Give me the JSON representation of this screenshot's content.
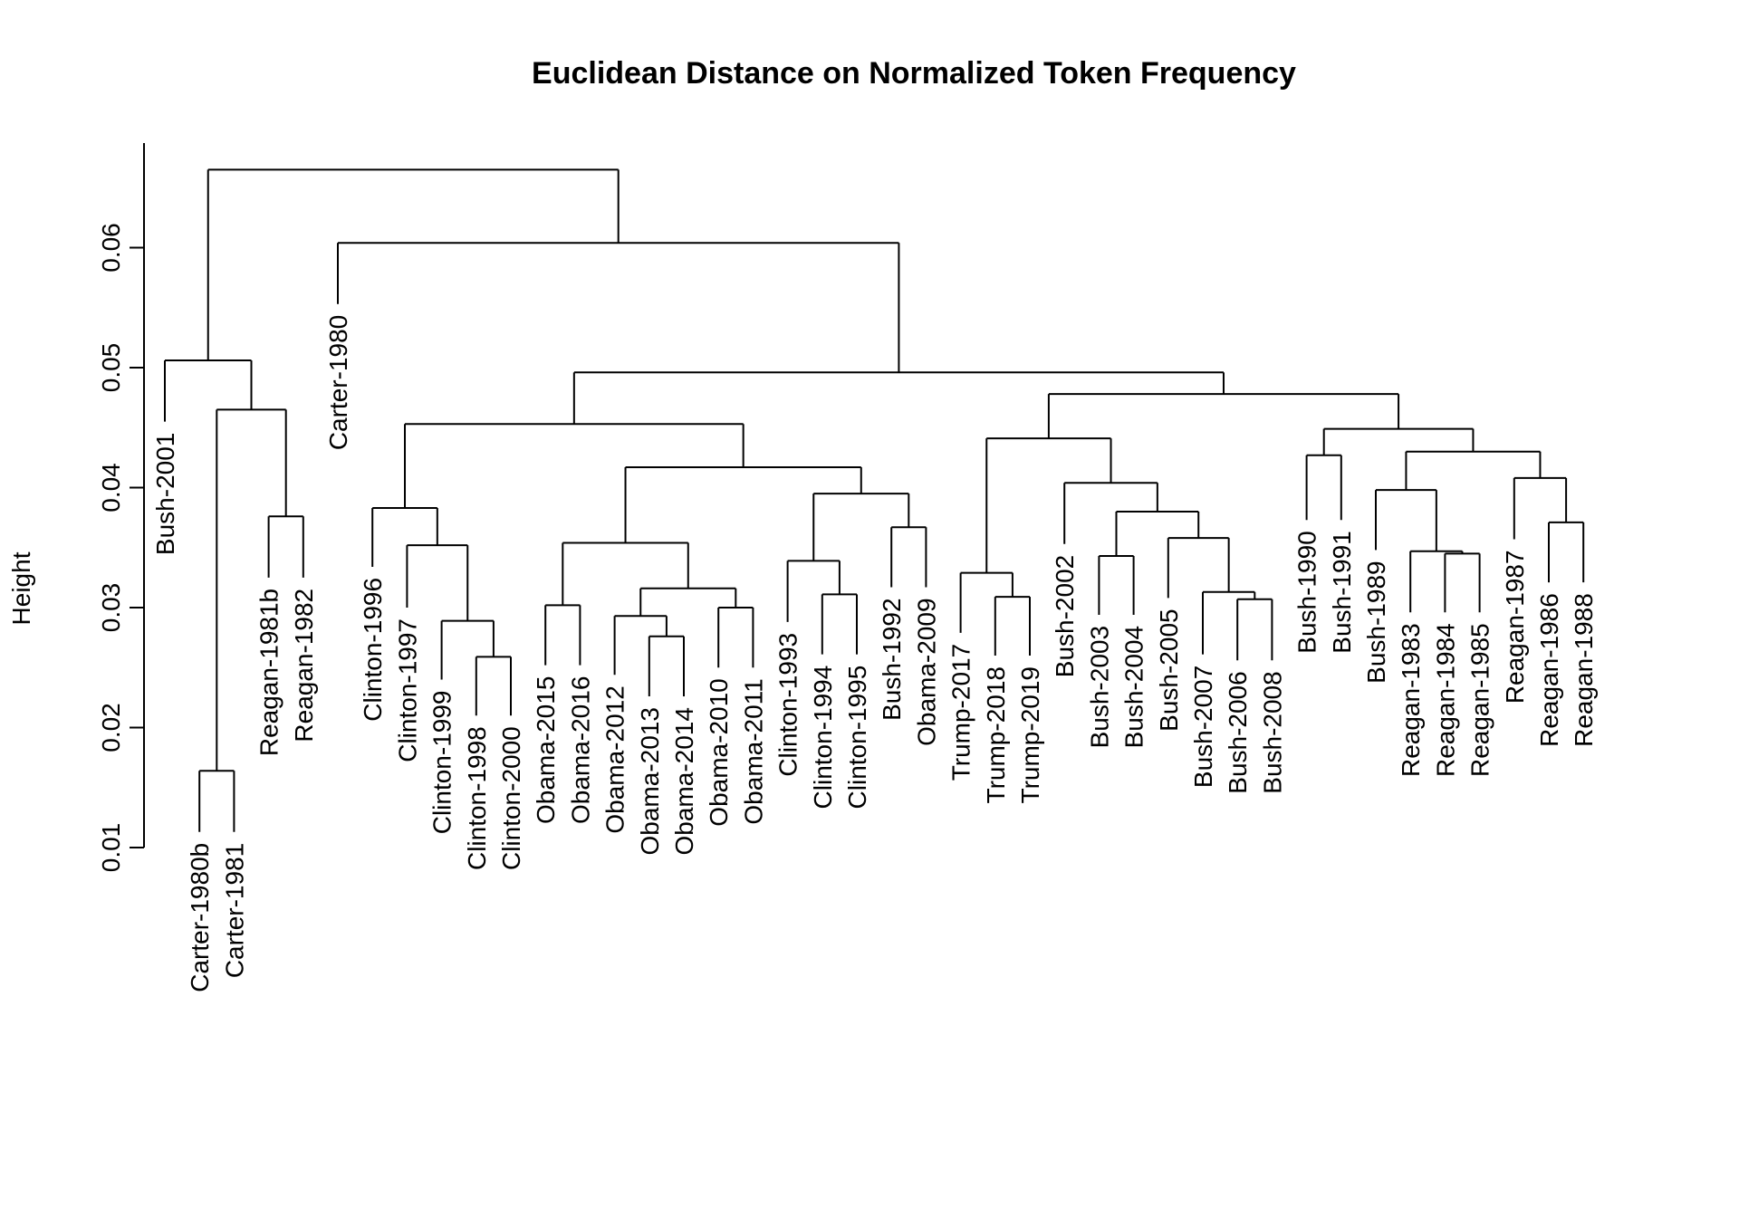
{
  "chart_data": {
    "type": "dendrogram",
    "title": "Euclidean Distance on Normalized Token Frequency",
    "ylabel": "Height",
    "xlabel": "",
    "ylim": [
      0.01,
      0.0665
    ],
    "yticks": [
      "0.01",
      "0.02",
      "0.03",
      "0.04",
      "0.05",
      "0.06"
    ],
    "grid": false,
    "leaves": [
      {
        "label": "Bush-2001",
        "height": 0.0455
      },
      {
        "label": "Carter-1980b",
        "height": 0.0113
      },
      {
        "label": "Carter-1981",
        "height": 0.0113
      },
      {
        "label": "Reagan-1981b",
        "height": 0.0325
      },
      {
        "label": "Reagan-1982",
        "height": 0.0325
      },
      {
        "label": "Carter-1980",
        "height": 0.0553
      },
      {
        "label": "Clinton-1996",
        "height": 0.0334
      },
      {
        "label": "Clinton-1997",
        "height": 0.03
      },
      {
        "label": "Clinton-1999",
        "height": 0.024
      },
      {
        "label": "Clinton-1998",
        "height": 0.021
      },
      {
        "label": "Clinton-2000",
        "height": 0.021
      },
      {
        "label": "Obama-2015",
        "height": 0.0252
      },
      {
        "label": "Obama-2016",
        "height": 0.0252
      },
      {
        "label": "Obama-2012",
        "height": 0.0244
      },
      {
        "label": "Obama-2013",
        "height": 0.0226
      },
      {
        "label": "Obama-2014",
        "height": 0.0226
      },
      {
        "label": "Obama-2010",
        "height": 0.025
      },
      {
        "label": "Obama-2011",
        "height": 0.025
      },
      {
        "label": "Clinton-1993",
        "height": 0.0288
      },
      {
        "label": "Clinton-1994",
        "height": 0.0261
      },
      {
        "label": "Clinton-1995",
        "height": 0.0261
      },
      {
        "label": "Bush-1992",
        "height": 0.0317
      },
      {
        "label": "Obama-2009",
        "height": 0.0317
      },
      {
        "label": "Trump-2017",
        "height": 0.0279
      },
      {
        "label": "Trump-2018",
        "height": 0.026
      },
      {
        "label": "Trump-2019",
        "height": 0.026
      },
      {
        "label": "Bush-2002",
        "height": 0.0353
      },
      {
        "label": "Bush-2003",
        "height": 0.0294
      },
      {
        "label": "Bush-2004",
        "height": 0.0294
      },
      {
        "label": "Bush-2005",
        "height": 0.0308
      },
      {
        "label": "Bush-2007",
        "height": 0.0261
      },
      {
        "label": "Bush-2006",
        "height": 0.0256
      },
      {
        "label": "Bush-2008",
        "height": 0.0256
      },
      {
        "label": "Bush-1990",
        "height": 0.0373
      },
      {
        "label": "Bush-1991",
        "height": 0.0373
      },
      {
        "label": "Bush-1989",
        "height": 0.0348
      },
      {
        "label": "Reagan-1983",
        "height": 0.0296
      },
      {
        "label": "Reagan-1984",
        "height": 0.0296
      },
      {
        "label": "Reagan-1985",
        "height": 0.0296
      },
      {
        "label": "Reagan-1987",
        "height": 0.0357
      },
      {
        "label": "Reagan-1986",
        "height": 0.0321
      },
      {
        "label": "Reagan-1988",
        "height": 0.0321
      }
    ],
    "merges": [
      {
        "left": "L1",
        "right": "L2",
        "height": 0.0164
      },
      {
        "left": "L3",
        "right": "L4",
        "height": 0.0376
      },
      {
        "left": "N0",
        "right": "N1",
        "height": 0.0465
      },
      {
        "left": "L0",
        "right": "N2",
        "height": 0.0506
      },
      {
        "left": "L9",
        "right": "L10",
        "height": 0.0259
      },
      {
        "left": "L8",
        "right": "N4",
        "height": 0.0289
      },
      {
        "left": "L7",
        "right": "N5",
        "height": 0.0352
      },
      {
        "left": "L6",
        "right": "N6",
        "height": 0.0383
      },
      {
        "left": "L11",
        "right": "L12",
        "height": 0.0302
      },
      {
        "left": "L14",
        "right": "L15",
        "height": 0.0276
      },
      {
        "left": "L13",
        "right": "N9",
        "height": 0.0293
      },
      {
        "left": "L16",
        "right": "L17",
        "height": 0.03
      },
      {
        "left": "N10",
        "right": "N11",
        "height": 0.0316
      },
      {
        "left": "N8",
        "right": "N12",
        "height": 0.0354
      },
      {
        "left": "L19",
        "right": "L20",
        "height": 0.0311
      },
      {
        "left": "L18",
        "right": "N14",
        "height": 0.0339
      },
      {
        "left": "L21",
        "right": "L22",
        "height": 0.0367
      },
      {
        "left": "N15",
        "right": "N16",
        "height": 0.0395
      },
      {
        "left": "N13",
        "right": "N17",
        "height": 0.0417
      },
      {
        "left": "N7",
        "right": "N18",
        "height": 0.0453
      },
      {
        "left": "L24",
        "right": "L25",
        "height": 0.0309
      },
      {
        "left": "L23",
        "right": "N20",
        "height": 0.0329
      },
      {
        "left": "L27",
        "right": "L28",
        "height": 0.0343
      },
      {
        "left": "L31",
        "right": "L32",
        "height": 0.0307
      },
      {
        "left": "L30",
        "right": "N23",
        "height": 0.0313
      },
      {
        "left": "L29",
        "right": "N24",
        "height": 0.0358
      },
      {
        "left": "N22",
        "right": "N25",
        "height": 0.038
      },
      {
        "left": "L26",
        "right": "N26",
        "height": 0.0404
      },
      {
        "left": "N21",
        "right": "N27",
        "height": 0.0441
      },
      {
        "left": "L33",
        "right": "L34",
        "height": 0.0427
      },
      {
        "left": "L37",
        "right": "L38",
        "height": 0.0345
      },
      {
        "left": "L36",
        "right": "N30",
        "height": 0.0347
      },
      {
        "left": "L35",
        "right": "N31",
        "height": 0.0398
      },
      {
        "left": "L40",
        "right": "L41",
        "height": 0.0371
      },
      {
        "left": "L39",
        "right": "N33",
        "height": 0.0408
      },
      {
        "left": "N32",
        "right": "N34",
        "height": 0.043
      },
      {
        "left": "N29",
        "right": "N35",
        "height": 0.0449
      },
      {
        "left": "N28",
        "right": "N36",
        "height": 0.0478
      },
      {
        "left": "N19",
        "right": "N37",
        "height": 0.0496
      },
      {
        "left": "L5",
        "right": "N38",
        "height": 0.0604
      },
      {
        "left": "N3",
        "right": "N39",
        "height": 0.0665
      }
    ]
  }
}
